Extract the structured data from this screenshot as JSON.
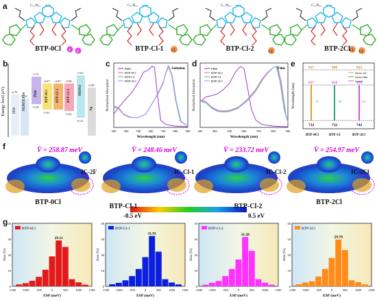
{
  "panel_labels": {
    "a": "a",
    "b": "b",
    "c": "c",
    "d": "d",
    "e": "e",
    "f": "f",
    "g": "g"
  },
  "molecules": [
    "BTP-0Cl",
    "BTP-Cl-1",
    "BTP-Cl-2",
    "BTP-2Cl"
  ],
  "mol_text": {
    "c11h23": "C₁₁H₂₃",
    "c4h9": "C₄H₉",
    "c2h5": "C₂H₅",
    "s": "S",
    "n": "N",
    "f": "F",
    "cl": "Cl",
    "nc": "NC",
    "cn": "CN",
    "o": "O"
  },
  "colors": {
    "core": "#1fb6e8",
    "side": "#d81d1d",
    "end": "#2eaa27",
    "fluoro": "#e53fe5",
    "chloro": "#f2934a",
    "pm6": "#9b4ad9",
    "btp0": "#f08080",
    "btp1": "#66c2a5",
    "btp2": "#a0a0ff",
    "g_red": "#e31a1c",
    "g_blue": "#0b1fe0",
    "g_mag": "#ff33ff",
    "g_orange": "#ff8c1a"
  },
  "chart_data": [
    {
      "panel": "b",
      "type": "energy-level",
      "ylabel": "Energy level (eV)",
      "levels": [
        {
          "name": "ITO",
          "lumo": null,
          "homo": "-4.70"
        },
        {
          "name": "PEDOT:PSS",
          "lumo": null,
          "homo": "-5.10"
        },
        {
          "name": "PM6",
          "lumo": "-3.75",
          "homo": "-5.50"
        },
        {
          "name": "BTP-0Cl",
          "lumo": "-4.07",
          "homo": "-5.61"
        },
        {
          "name": "BTP-Cl-1",
          "lumo": "-4.05",
          "homo": null
        },
        {
          "name": "BTP-Cl-2",
          "lumo": "-4.06",
          "homo": "-5.62"
        },
        {
          "name": "PDINO",
          "lumo": "-3.63",
          "homo": "-6.21"
        },
        {
          "name": "Ag",
          "lumo": "-4.30",
          "homo": null
        }
      ]
    },
    {
      "panel": "c",
      "type": "line",
      "annotation": "Solution",
      "xlabel": "Wavelength (nm)",
      "ylabel": "Normalized Absorption",
      "xticks": [
        "300",
        "400",
        "500",
        "600",
        "700",
        "800",
        "900"
      ],
      "series": [
        {
          "name": "PM6",
          "x": [
            300,
            350,
            400,
            450,
            500,
            540,
            580,
            610,
            630,
            650,
            680,
            720,
            800,
            900
          ],
          "y": [
            0.22,
            0.35,
            0.47,
            0.58,
            0.74,
            0.9,
            0.94,
            1.0,
            0.98,
            0.6,
            0.12,
            0.05,
            0.02,
            0.01
          ]
        },
        {
          "name": "BTP-0Cl",
          "x": [
            300,
            340,
            380,
            420,
            460,
            500,
            560,
            620,
            660,
            700,
            720,
            740,
            770,
            800,
            840,
            900
          ],
          "y": [
            0.35,
            0.32,
            0.22,
            0.18,
            0.16,
            0.16,
            0.22,
            0.42,
            0.55,
            0.72,
            0.88,
            1.0,
            0.85,
            0.45,
            0.1,
            0.02
          ]
        },
        {
          "name": "BTP-Cl",
          "x": [
            300,
            340,
            380,
            420,
            460,
            500,
            560,
            620,
            660,
            700,
            720,
            744,
            772,
            802,
            842,
            900
          ],
          "y": [
            0.34,
            0.31,
            0.21,
            0.17,
            0.16,
            0.16,
            0.22,
            0.42,
            0.56,
            0.73,
            0.89,
            1.0,
            0.84,
            0.44,
            0.1,
            0.02
          ]
        },
        {
          "name": "BTP-2Cl",
          "x": [
            300,
            340,
            380,
            420,
            460,
            500,
            560,
            620,
            660,
            700,
            725,
            748,
            776,
            806,
            846,
            900
          ],
          "y": [
            0.33,
            0.3,
            0.21,
            0.17,
            0.16,
            0.16,
            0.22,
            0.42,
            0.57,
            0.74,
            0.9,
            1.0,
            0.83,
            0.43,
            0.1,
            0.02
          ]
        }
      ]
    },
    {
      "panel": "d",
      "type": "line",
      "annotation": "Film",
      "xlabel": "Wavelength (nm)",
      "ylabel": "Normalized Absorption",
      "xticks": [
        "300",
        "400",
        "500",
        "600",
        "700",
        "800",
        "900"
      ],
      "series": [
        {
          "name": "PM6",
          "x": [
            300,
            340,
            380,
            420,
            460,
            500,
            540,
            575,
            600,
            620,
            650,
            680,
            720,
            800,
            900
          ],
          "y": [
            0.42,
            0.5,
            0.52,
            0.55,
            0.62,
            0.72,
            0.9,
            1.0,
            0.96,
            0.7,
            0.3,
            0.12,
            0.05,
            0.02,
            0.01
          ]
        },
        {
          "name": "BTP-0Cl",
          "x": [
            300,
            340,
            380,
            420,
            460,
            500,
            560,
            620,
            680,
            720,
            760,
            800,
            825,
            850,
            880,
            900
          ],
          "y": [
            0.45,
            0.42,
            0.33,
            0.28,
            0.27,
            0.28,
            0.33,
            0.45,
            0.62,
            0.78,
            0.9,
            0.98,
            1.0,
            0.75,
            0.25,
            0.08
          ]
        },
        {
          "name": "BTP-Cl",
          "x": [
            300,
            340,
            380,
            420,
            460,
            500,
            560,
            620,
            680,
            720,
            760,
            800,
            820,
            845,
            875,
            900
          ],
          "y": [
            0.44,
            0.41,
            0.32,
            0.27,
            0.26,
            0.27,
            0.32,
            0.44,
            0.6,
            0.76,
            0.88,
            0.98,
            1.0,
            0.76,
            0.28,
            0.1
          ]
        },
        {
          "name": "BTP-2Cl",
          "x": [
            300,
            340,
            380,
            420,
            460,
            500,
            560,
            620,
            680,
            720,
            760,
            800,
            830,
            855,
            885,
            900
          ],
          "y": [
            0.43,
            0.4,
            0.31,
            0.26,
            0.25,
            0.26,
            0.31,
            0.43,
            0.59,
            0.75,
            0.89,
            0.98,
            1.0,
            0.74,
            0.24,
            0.08
          ]
        }
      ]
    },
    {
      "panel": "e",
      "type": "bar",
      "ylabel": "Wavelength (nm)",
      "categories": [
        "BTP-0Cl",
        "BTP-Cl",
        "BTP-2Cl"
      ],
      "top_labels": [
        "917",
        "909",
        "922"
      ],
      "mid_labels": [
        "827",
        "819",
        "836"
      ],
      "base_labels": [
        "732",
        "732",
        "742"
      ],
      "shift_labels": [
        "95",
        "87",
        "94"
      ],
      "legend": [
        "λᴼᴾˢᵒˡᵘᵗᶦᵒⁿ max",
        "λᶠᶦˡᵐ max",
        "λᵒⁿˢᵉᵗ max"
      ],
      "legend_short": [
        "λ_max^sol",
        "λ_max^film",
        "λ_onset"
      ]
    },
    {
      "panel": "g",
      "type": "bar",
      "xlabel": "ESP (meV)",
      "ylabel": "Area (%)",
      "xticks": [
        "-1500",
        "-1000",
        "-500",
        "0",
        "500",
        "1000",
        "1500"
      ],
      "panels": [
        {
          "name": "BTP-0Cl",
          "color": "#e31a1c",
          "peak_label": "29.11",
          "x": [
            -1250,
            -1000,
            -750,
            -500,
            -250,
            0,
            250,
            500,
            750,
            1000,
            1250
          ],
          "values": [
            1.2,
            2.0,
            3.5,
            6.0,
            10.5,
            19.0,
            29.11,
            25.0,
            4.5,
            2.5,
            1.0
          ]
        },
        {
          "name": "BTP-Cl-1",
          "color": "#0b1fe0",
          "peak_label": "31.91",
          "x": [
            -1250,
            -1000,
            -750,
            -500,
            -250,
            0,
            250,
            500,
            750,
            1000,
            1250
          ],
          "values": [
            1.3,
            2.2,
            3.8,
            6.5,
            11.0,
            18.5,
            31.91,
            22.0,
            4.5,
            2.4,
            1.2
          ]
        },
        {
          "name": "BTP-Cl-2",
          "color": "#ff33ff",
          "peak_label": "31.28",
          "x": [
            -1250,
            -1000,
            -750,
            -500,
            -250,
            0,
            250,
            500,
            750,
            1000,
            1250
          ],
          "values": [
            1.0,
            2.2,
            3.4,
            6.5,
            11.0,
            17.0,
            31.28,
            22.5,
            4.5,
            2.3,
            1.0
          ]
        },
        {
          "name": "BTP-2Cl",
          "color": "#ff8c1a",
          "peak_label": "29.70",
          "x": [
            -1250,
            -1000,
            -750,
            -500,
            -250,
            0,
            250,
            500,
            750,
            1000,
            1250
          ],
          "values": [
            1.3,
            2.4,
            3.2,
            6.2,
            11.0,
            18.0,
            29.7,
            23.0,
            3.8,
            2.6,
            1.2
          ]
        }
      ]
    }
  ],
  "esp": {
    "values": [
      "V̄ = 258.87 meV",
      "V̄ = 248.46 meV",
      "V̄ = 233.72 meV",
      "V̄ = 254.97 meV"
    ],
    "frags": [
      "IC-2F",
      "IC-Cl-1",
      "IC-Cl-2",
      "IC-2Cl"
    ],
    "scale_min": "-0.5 eV",
    "scale_max": "0.5 eV"
  }
}
